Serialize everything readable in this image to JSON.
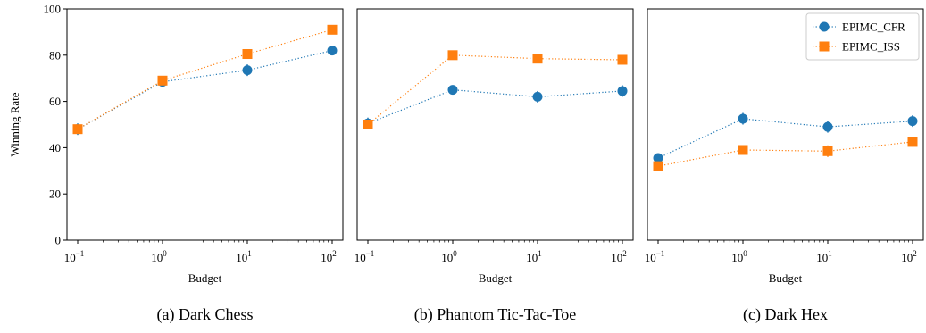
{
  "figure": {
    "ylabel": "Winning Rate",
    "xlabel": "Budget",
    "legend": {
      "placement": "top-right",
      "entries": [
        "EPIMC_CFR",
        "EPIMC_ISS"
      ]
    }
  },
  "colors": {
    "cfr": "#1f77b4",
    "iss": "#ff7f0e",
    "axis": "#000000"
  },
  "chart_data": [
    {
      "type": "line",
      "caption": "(a) Dark Chess",
      "xscale": "log",
      "x": [
        0.1,
        1,
        10,
        100
      ],
      "xticks": [
        {
          "base": "10",
          "exp": "−1"
        },
        {
          "base": "10",
          "exp": "0"
        },
        {
          "base": "10",
          "exp": "1"
        },
        {
          "base": "10",
          "exp": "2"
        }
      ],
      "ylim": [
        0,
        100
      ],
      "yticks": [
        "0",
        "20",
        "40",
        "60",
        "80",
        "100"
      ],
      "ylabel": "Winning Rate",
      "xlabel": "Budget",
      "series": [
        {
          "name": "EPIMC_CFR",
          "values": [
            48,
            68.5,
            73.5,
            82
          ],
          "err": [
            2.5,
            2,
            2.5,
            1.5
          ]
        },
        {
          "name": "EPIMC_ISS",
          "values": [
            48,
            69,
            80.5,
            91
          ],
          "err": [
            2,
            2,
            1.5,
            1
          ]
        }
      ]
    },
    {
      "type": "line",
      "caption": "(b) Phantom Tic-Tac-Toe",
      "xscale": "log",
      "x": [
        0.1,
        1,
        10,
        100
      ],
      "xticks": [
        {
          "base": "10",
          "exp": "−1"
        },
        {
          "base": "10",
          "exp": "0"
        },
        {
          "base": "10",
          "exp": "1"
        },
        {
          "base": "10",
          "exp": "2"
        }
      ],
      "ylim": [
        0,
        100
      ],
      "yticks": [],
      "ylabel": "",
      "xlabel": "Budget",
      "series": [
        {
          "name": "EPIMC_CFR",
          "values": [
            50.5,
            65,
            62,
            64.5
          ],
          "err": [
            2.5,
            1.5,
            2.5,
            2.5
          ]
        },
        {
          "name": "EPIMC_ISS",
          "values": [
            50,
            80,
            78.5,
            78
          ],
          "err": [
            2,
            1,
            1.5,
            1.5
          ]
        }
      ]
    },
    {
      "type": "line",
      "caption": "(c) Dark Hex",
      "xscale": "log",
      "x": [
        0.1,
        1,
        10,
        100
      ],
      "xticks": [
        {
          "base": "10",
          "exp": "−1"
        },
        {
          "base": "10",
          "exp": "0"
        },
        {
          "base": "10",
          "exp": "1"
        },
        {
          "base": "10",
          "exp": "2"
        }
      ],
      "ylim": [
        0,
        100
      ],
      "yticks": [],
      "ylabel": "",
      "xlabel": "Budget",
      "series": [
        {
          "name": "EPIMC_CFR",
          "values": [
            35.5,
            52.5,
            49,
            51.5
          ],
          "err": [
            2,
            2.5,
            2.5,
            2.5
          ]
        },
        {
          "name": "EPIMC_ISS",
          "values": [
            32,
            39,
            38.5,
            42.5
          ],
          "err": [
            2,
            2,
            2.5,
            2
          ]
        }
      ]
    }
  ]
}
